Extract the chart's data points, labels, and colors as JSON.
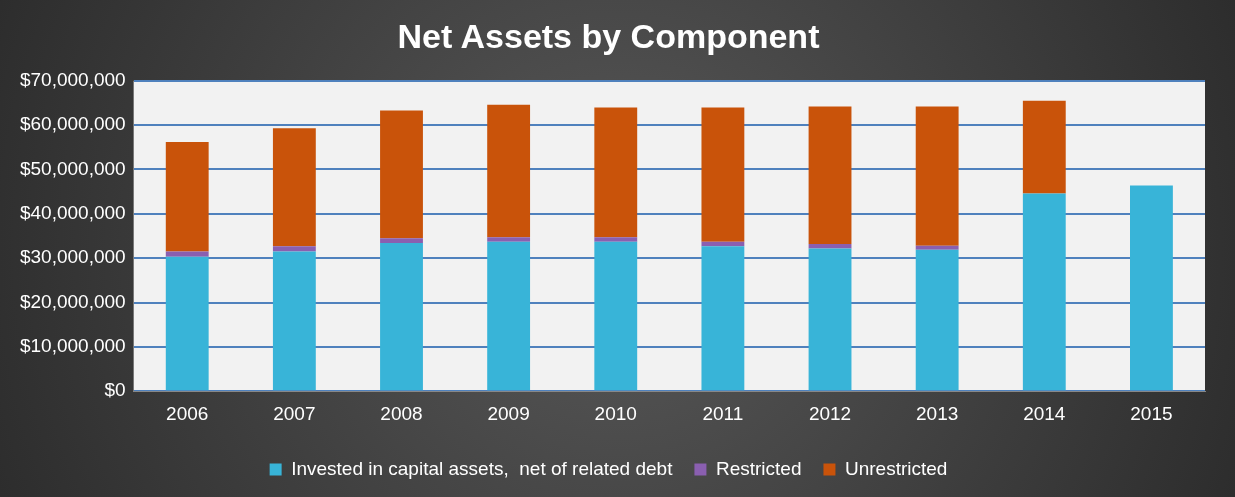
{
  "chart_data": {
    "type": "bar",
    "title": "Net Assets by Component",
    "stacked": true,
    "categories": [
      "2006",
      "2007",
      "2008",
      "2009",
      "2010",
      "2011",
      "2012",
      "2013",
      "2014",
      "2015"
    ],
    "series": [
      {
        "name": "Invested in capital assets,  net of related debt",
        "color": "#38b4d8",
        "values": [
          30300000,
          31500000,
          33400000,
          33700000,
          33700000,
          32700000,
          32200000,
          31900000,
          44600000,
          46400000
        ]
      },
      {
        "name": "Restricted",
        "color": "#8a5fb0",
        "values": [
          1200000,
          1200000,
          1100000,
          1000000,
          1000000,
          1000000,
          1000000,
          900000,
          null,
          null
        ]
      },
      {
        "name": "Unrestricted",
        "color": "#c9530a",
        "values": [
          24700000,
          26600000,
          28800000,
          29900000,
          29300000,
          30300000,
          31000000,
          31400000,
          20900000,
          null
        ]
      }
    ],
    "ylim": [
      0,
      70000000
    ],
    "yticks": [
      {
        "value": 0,
        "label": "$0"
      },
      {
        "value": 10000000,
        "label": "$10,000,000"
      },
      {
        "value": 20000000,
        "label": "$20,000,000"
      },
      {
        "value": 30000000,
        "label": "$30,000,000"
      },
      {
        "value": 40000000,
        "label": "$40,000,000"
      },
      {
        "value": 50000000,
        "label": "$50,000,000"
      },
      {
        "value": 60000000,
        "label": "$60,000,000"
      },
      {
        "value": 70000000,
        "label": "$70,000,000"
      }
    ],
    "grid": "y",
    "legend": "bottom"
  }
}
